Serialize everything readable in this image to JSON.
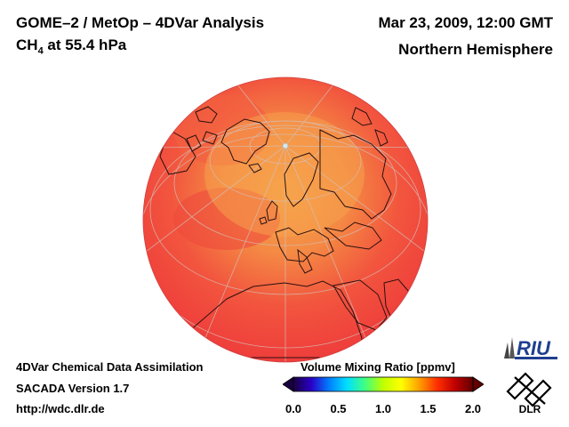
{
  "header": {
    "title": "GOME–2 / MetOp – 4DVar Analysis",
    "species_main": "CH",
    "species_sub": "4",
    "species_rest": " at 55.4 hPa",
    "date": "Mar 23, 2009, 12:00 GMT",
    "region": "Northern Hemisphere"
  },
  "footer": {
    "line1": "4DVar Chemical Data Assimilation",
    "line2": "SACADA Version 1.7",
    "line3": "http://wdc.dlr.de"
  },
  "colorbar": {
    "label": "Volume Mixing Ratio [ppmv]",
    "ticks": [
      "0.0",
      "0.5",
      "1.0",
      "1.5",
      "2.0"
    ],
    "min": 0.0,
    "max": 2.0,
    "colors": [
      "#1a0040",
      "#2a00c8",
      "#0080ff",
      "#00e0ff",
      "#40ff80",
      "#c0ff00",
      "#ffff00",
      "#ffa000",
      "#ff3000",
      "#c00000",
      "#600000"
    ]
  },
  "map": {
    "projection": "orthographic",
    "field_color_base": "#f24a3e",
    "field_color_high": "#f5a04a",
    "coastline_color": "#2a1010",
    "grid_color": "#c8c8c8"
  },
  "logos": {
    "riu_text": "RIU",
    "dlr_text": "DLR"
  }
}
